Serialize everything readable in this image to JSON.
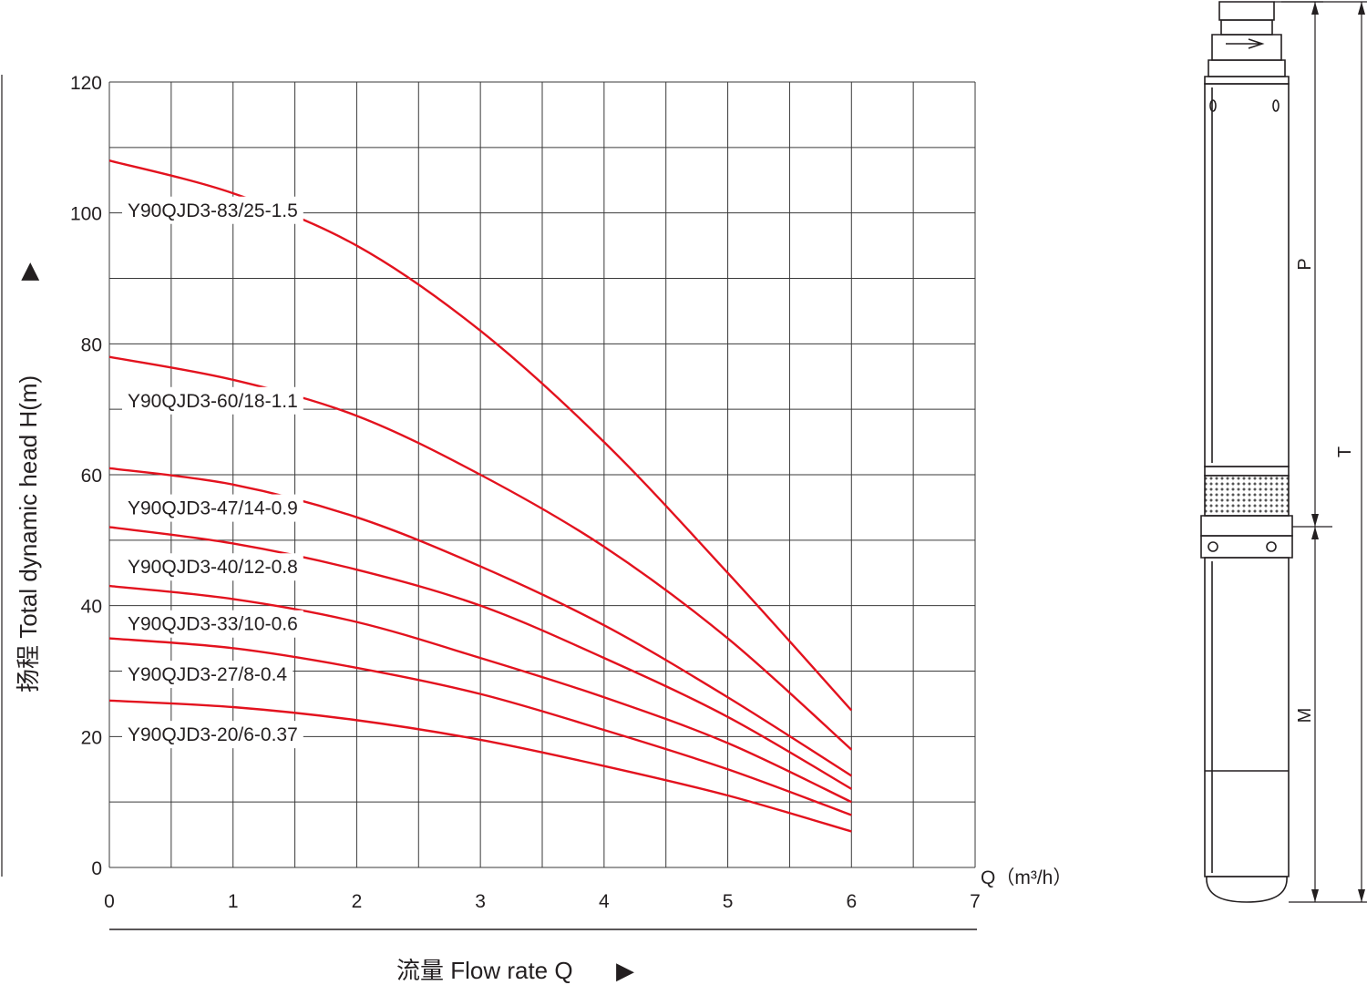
{
  "chart_data": {
    "type": "line",
    "xlabel": "流量 Flow rate Q",
    "xlabel_arrow": "▶",
    "ylabel": "扬程 Total dynamic head H(m)",
    "ylabel_arrow": "▶",
    "x_unit_label": "Q（m³/h）",
    "xlim": [
      0,
      7
    ],
    "ylim": [
      0,
      120
    ],
    "x_ticks": [
      "0",
      "1",
      "2",
      "3",
      "4",
      "5",
      "6",
      "7"
    ],
    "y_ticks": [
      "0",
      "20",
      "40",
      "60",
      "80",
      "100",
      "120"
    ],
    "grid": true,
    "series": [
      {
        "name": "Y90QJD3-83/25-1.5",
        "x": [
          0,
          1,
          2,
          3,
          4,
          5,
          6
        ],
        "y": [
          108,
          103,
          95,
          82,
          65,
          45,
          24
        ]
      },
      {
        "name": "Y90QJD3-60/18-1.1",
        "x": [
          0,
          1,
          2,
          3,
          4,
          5,
          6
        ],
        "y": [
          78,
          74.5,
          69,
          60,
          49,
          35,
          18
        ]
      },
      {
        "name": "Y90QJD3-47/14-0.9",
        "x": [
          0,
          1,
          2,
          3,
          4,
          5,
          6
        ],
        "y": [
          61,
          58.5,
          53.5,
          46,
          37,
          26,
          14
        ]
      },
      {
        "name": "Y90QJD3-40/12-0.8",
        "x": [
          0,
          1,
          2,
          3,
          4,
          5,
          6
        ],
        "y": [
          52,
          49.5,
          45.5,
          40,
          32,
          23,
          12
        ]
      },
      {
        "name": "Y90QJD3-33/10-0.6",
        "x": [
          0,
          1,
          2,
          3,
          4,
          5,
          6
        ],
        "y": [
          43,
          41,
          37.5,
          32,
          26,
          19,
          10
        ]
      },
      {
        "name": "Y90QJD3-27/8-0.4",
        "x": [
          0,
          1,
          2,
          3,
          4,
          5,
          6
        ],
        "y": [
          35,
          33.5,
          30.5,
          26.5,
          21,
          15,
          8
        ]
      },
      {
        "name": "Y90QJD3-20/6-0.37",
        "x": [
          0,
          1,
          2,
          3,
          4,
          5,
          6
        ],
        "y": [
          25.5,
          24.5,
          22.5,
          19.5,
          15.5,
          11,
          5.5
        ]
      }
    ],
    "series_color": "#e3121e"
  },
  "pump_diagram": {
    "dimension_labels": [
      "P",
      "T",
      "M"
    ]
  }
}
